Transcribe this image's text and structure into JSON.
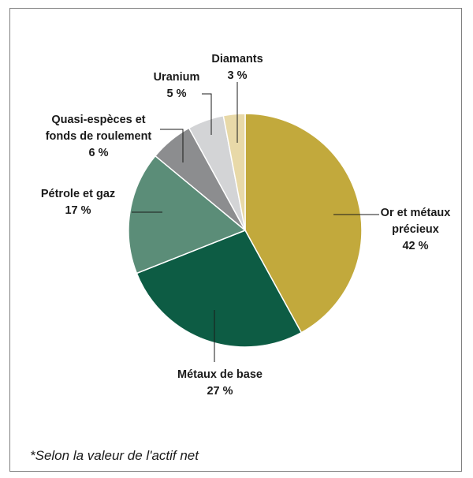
{
  "chart_data": {
    "type": "pie",
    "slices": [
      {
        "name": "Or et métaux précieux",
        "label_lines": [
          "Or et métaux",
          "précieux"
        ],
        "value": 42,
        "value_label": "42 %",
        "color": "#c2a93c"
      },
      {
        "name": "Métaux de base",
        "label_lines": [
          "Métaux de base"
        ],
        "value": 27,
        "value_label": "27 %",
        "color": "#0d5c44"
      },
      {
        "name": "Pétrole et gaz",
        "label_lines": [
          "Pétrole et gaz"
        ],
        "value": 17,
        "value_label": "17 %",
        "color": "#5b8d78"
      },
      {
        "name": "Quasi-espèces et fonds de roulement",
        "label_lines": [
          "Quasi-espèces et",
          "fonds de roulement"
        ],
        "value": 6,
        "value_label": "6 %",
        "color": "#8c8d8f"
      },
      {
        "name": "Uranium",
        "label_lines": [
          "Uranium"
        ],
        "value": 5,
        "value_label": "5 %",
        "color": "#d3d4d6"
      },
      {
        "name": "Diamants",
        "label_lines": [
          "Diamants"
        ],
        "value": 3,
        "value_label": "3 %",
        "color": "#e8d9a8"
      }
    ]
  },
  "footnote": "*Selon la valeur de l'actif net"
}
